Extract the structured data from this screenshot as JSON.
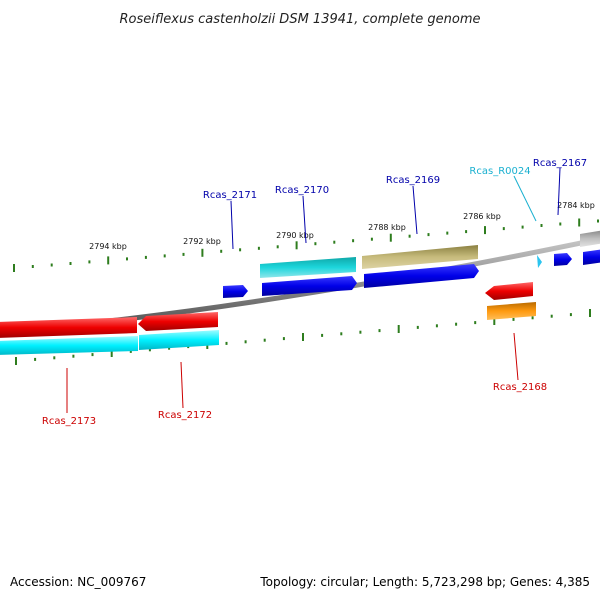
{
  "title": "Roseiflexus castenholzii DSM 13941, complete genome",
  "footer": {
    "accession": "Accession: NC_009767",
    "stats": "Topology: circular; Length: 5,723,298 bp; Genes: 4,385"
  },
  "kbp_labels": [
    "2794 kbp",
    "2792 kbp",
    "2790 kbp",
    "2788 kbp",
    "2786 kbp",
    "2784 kbp"
  ],
  "genes": {
    "rcas_2173": "Rcas_2173",
    "rcas_2172": "Rcas_2172",
    "rcas_2171": "Rcas_2171",
    "rcas_2170": "Rcas_2170",
    "rcas_2169": "Rcas_2169",
    "rcas_r0024": "Rcas_R0024",
    "rcas_2167": "Rcas_2167",
    "rcas_2168": "Rcas_2168"
  },
  "colors": {
    "red_label": "#cc0000",
    "blue_label": "#0000aa",
    "cyan_label": "#1ab0d0",
    "tick": "#2e7d1e"
  }
}
